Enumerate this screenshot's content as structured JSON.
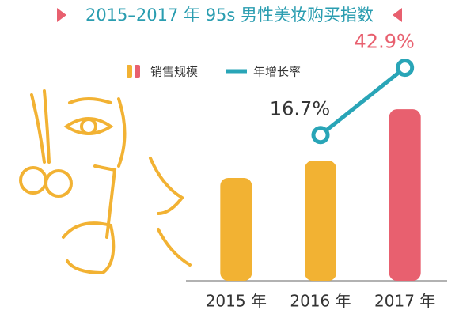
{
  "chart_data": {
    "type": "bar-line",
    "title": "2015–2017 年 95s 男性美妆购买指数",
    "categories": [
      "2015 年",
      "2016 年",
      "2017 年"
    ],
    "series": [
      {
        "name": "销售规模",
        "type": "bar",
        "colors": [
          "#f2b233",
          "#f2b233",
          "#e8606f"
        ],
        "values": [
          100,
          116.7,
          166.8
        ]
      },
      {
        "name": "年增长率",
        "type": "line",
        "axis": "y2",
        "color": "#29a5b7",
        "values": [
          null,
          16.7,
          42.9
        ],
        "value_labels": [
          null,
          "16.7%",
          "42.9%"
        ],
        "value_label_colors": [
          null,
          "#333333",
          "#e8606f"
        ]
      }
    ],
    "ylim": [
      0,
      200
    ],
    "y2lim": [
      -40,
      40
    ],
    "title_color": "#2a9db0"
  }
}
